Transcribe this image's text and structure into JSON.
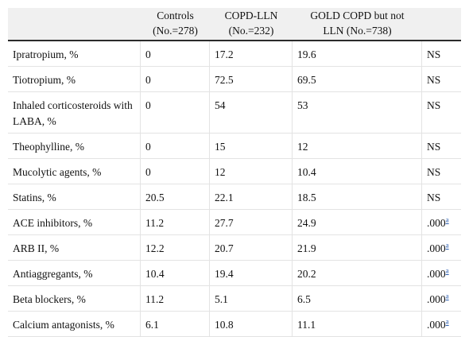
{
  "headers": {
    "c0": "",
    "c1": [
      "Controls",
      "(No.=278)"
    ],
    "c2": [
      "COPD-LLN",
      "(No.=232)"
    ],
    "c3": [
      "GOLD COPD but not",
      "LLN (No.=738)"
    ],
    "c4": ""
  },
  "rows": [
    {
      "label": "Ipratropium, %",
      "controls": "0",
      "copd_lln": "17.2",
      "gold": "19.6",
      "p": "NS",
      "note": ""
    },
    {
      "label": "Tiotropium, %",
      "controls": "0",
      "copd_lln": "72.5",
      "gold": "69.5",
      "p": "NS",
      "note": ""
    },
    {
      "label": "Inhaled corticosteroids with LABA, %",
      "controls": "0",
      "copd_lln": "54",
      "gold": "53",
      "p": "NS",
      "note": ""
    },
    {
      "label": "Theophylline, %",
      "controls": "0",
      "copd_lln": "15",
      "gold": "12",
      "p": "NS",
      "note": ""
    },
    {
      "label": "Mucolytic agents, %",
      "controls": "0",
      "copd_lln": "12",
      "gold": "10.4",
      "p": "NS",
      "note": ""
    },
    {
      "label": "Statins, %",
      "controls": "20.5",
      "copd_lln": "22.1",
      "gold": "18.5",
      "p": "NS",
      "note": ""
    },
    {
      "label": "ACE inhibitors, %",
      "controls": "11.2",
      "copd_lln": "27.7",
      "gold": "24.9",
      "p": ".000",
      "note": "a"
    },
    {
      "label": "ARB II, %",
      "controls": "12.2",
      "copd_lln": "20.7",
      "gold": "21.9",
      "p": ".000",
      "note": "a"
    },
    {
      "label": "Antiaggregants, %",
      "controls": "10.4",
      "copd_lln": "19.4",
      "gold": "20.2",
      "p": ".000",
      "note": "a"
    },
    {
      "label": "Beta blockers, %",
      "controls": "11.2",
      "copd_lln": "5.1",
      "gold": "6.5",
      "p": ".000",
      "note": "a"
    },
    {
      "label": "Calcium antagonists, %",
      "controls": "6.1",
      "copd_lln": "10.8",
      "gold": "11.1",
      "p": ".000",
      "note": "a"
    }
  ]
}
